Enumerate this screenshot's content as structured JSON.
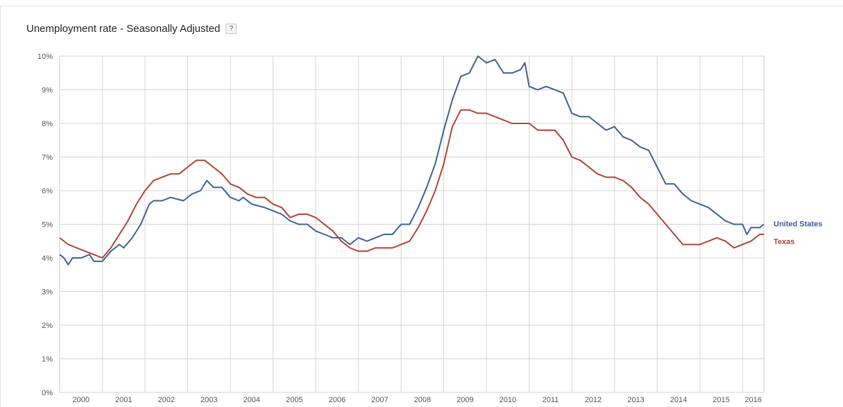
{
  "header": {
    "title": "Unemployment rate - Seasonally Adjusted",
    "help_label": "?"
  },
  "chart_data": {
    "type": "line",
    "title": "Unemployment rate - Seasonally Adjusted",
    "xlabel": "",
    "ylabel": "",
    "x_ticks": [
      "2000",
      "2001",
      "2002",
      "2003",
      "2004",
      "2005",
      "2006",
      "2007",
      "2008",
      "2009",
      "2010",
      "2011",
      "2012",
      "2013",
      "2014",
      "2015",
      "2016"
    ],
    "y_ticks": [
      "0%",
      "1%",
      "2%",
      "3%",
      "4%",
      "5%",
      "6%",
      "7%",
      "8%",
      "9%",
      "10%"
    ],
    "xlim": [
      2000.0,
      2016.5
    ],
    "ylim": [
      0,
      10
    ],
    "grid": true,
    "legend": "right-end",
    "series": [
      {
        "name": "United States",
        "color": "#3b5f9e",
        "points": [
          [
            2000.0,
            4.1
          ],
          [
            2000.1,
            4.0
          ],
          [
            2000.2,
            3.8
          ],
          [
            2000.3,
            4.0
          ],
          [
            2000.5,
            4.0
          ],
          [
            2000.7,
            4.1
          ],
          [
            2000.8,
            3.9
          ],
          [
            2001.0,
            3.9
          ],
          [
            2001.2,
            4.2
          ],
          [
            2001.4,
            4.4
          ],
          [
            2001.5,
            4.3
          ],
          [
            2001.7,
            4.6
          ],
          [
            2001.9,
            5.0
          ],
          [
            2002.1,
            5.6
          ],
          [
            2002.2,
            5.7
          ],
          [
            2002.4,
            5.7
          ],
          [
            2002.6,
            5.8
          ],
          [
            2002.9,
            5.7
          ],
          [
            2003.1,
            5.9
          ],
          [
            2003.3,
            6.0
          ],
          [
            2003.45,
            6.3
          ],
          [
            2003.6,
            6.1
          ],
          [
            2003.8,
            6.1
          ],
          [
            2004.0,
            5.8
          ],
          [
            2004.2,
            5.7
          ],
          [
            2004.3,
            5.8
          ],
          [
            2004.5,
            5.6
          ],
          [
            2004.8,
            5.5
          ],
          [
            2005.0,
            5.4
          ],
          [
            2005.2,
            5.3
          ],
          [
            2005.4,
            5.1
          ],
          [
            2005.6,
            5.0
          ],
          [
            2005.8,
            5.0
          ],
          [
            2006.0,
            4.8
          ],
          [
            2006.2,
            4.7
          ],
          [
            2006.4,
            4.6
          ],
          [
            2006.6,
            4.6
          ],
          [
            2006.8,
            4.4
          ],
          [
            2007.0,
            4.6
          ],
          [
            2007.2,
            4.5
          ],
          [
            2007.4,
            4.6
          ],
          [
            2007.6,
            4.7
          ],
          [
            2007.8,
            4.7
          ],
          [
            2008.0,
            5.0
          ],
          [
            2008.2,
            5.0
          ],
          [
            2008.4,
            5.5
          ],
          [
            2008.6,
            6.1
          ],
          [
            2008.8,
            6.8
          ],
          [
            2009.0,
            7.8
          ],
          [
            2009.2,
            8.7
          ],
          [
            2009.4,
            9.4
          ],
          [
            2009.6,
            9.5
          ],
          [
            2009.8,
            10.0
          ],
          [
            2010.0,
            9.8
          ],
          [
            2010.2,
            9.9
          ],
          [
            2010.4,
            9.5
          ],
          [
            2010.6,
            9.5
          ],
          [
            2010.8,
            9.6
          ],
          [
            2010.9,
            9.8
          ],
          [
            2011.0,
            9.1
          ],
          [
            2011.2,
            9.0
          ],
          [
            2011.4,
            9.1
          ],
          [
            2011.6,
            9.0
          ],
          [
            2011.8,
            8.9
          ],
          [
            2012.0,
            8.3
          ],
          [
            2012.2,
            8.2
          ],
          [
            2012.4,
            8.2
          ],
          [
            2012.6,
            8.0
          ],
          [
            2012.8,
            7.8
          ],
          [
            2013.0,
            7.9
          ],
          [
            2013.2,
            7.6
          ],
          [
            2013.4,
            7.5
          ],
          [
            2013.6,
            7.3
          ],
          [
            2013.8,
            7.2
          ],
          [
            2014.0,
            6.7
          ],
          [
            2014.2,
            6.2
          ],
          [
            2014.4,
            6.2
          ],
          [
            2014.6,
            5.9
          ],
          [
            2014.8,
            5.7
          ],
          [
            2015.0,
            5.6
          ],
          [
            2015.2,
            5.5
          ],
          [
            2015.4,
            5.3
          ],
          [
            2015.6,
            5.1
          ],
          [
            2015.8,
            5.0
          ],
          [
            2016.0,
            5.0
          ],
          [
            2016.1,
            4.7
          ],
          [
            2016.2,
            4.9
          ],
          [
            2016.4,
            4.9
          ],
          [
            2016.5,
            5.0
          ]
        ]
      },
      {
        "name": "Texas",
        "color": "#b0432f",
        "points": [
          [
            2000.0,
            4.6
          ],
          [
            2000.2,
            4.4
          ],
          [
            2000.4,
            4.3
          ],
          [
            2000.6,
            4.2
          ],
          [
            2000.8,
            4.1
          ],
          [
            2001.0,
            4.0
          ],
          [
            2001.2,
            4.3
          ],
          [
            2001.4,
            4.7
          ],
          [
            2001.6,
            5.1
          ],
          [
            2001.8,
            5.6
          ],
          [
            2002.0,
            6.0
          ],
          [
            2002.2,
            6.3
          ],
          [
            2002.4,
            6.4
          ],
          [
            2002.6,
            6.5
          ],
          [
            2002.8,
            6.5
          ],
          [
            2003.0,
            6.7
          ],
          [
            2003.2,
            6.9
          ],
          [
            2003.4,
            6.9
          ],
          [
            2003.6,
            6.7
          ],
          [
            2003.8,
            6.5
          ],
          [
            2004.0,
            6.2
          ],
          [
            2004.2,
            6.1
          ],
          [
            2004.4,
            5.9
          ],
          [
            2004.6,
            5.8
          ],
          [
            2004.8,
            5.8
          ],
          [
            2005.0,
            5.6
          ],
          [
            2005.2,
            5.5
          ],
          [
            2005.4,
            5.2
          ],
          [
            2005.6,
            5.3
          ],
          [
            2005.8,
            5.3
          ],
          [
            2006.0,
            5.2
          ],
          [
            2006.2,
            5.0
          ],
          [
            2006.4,
            4.8
          ],
          [
            2006.6,
            4.5
          ],
          [
            2006.8,
            4.3
          ],
          [
            2007.0,
            4.2
          ],
          [
            2007.2,
            4.2
          ],
          [
            2007.4,
            4.3
          ],
          [
            2007.6,
            4.3
          ],
          [
            2007.8,
            4.3
          ],
          [
            2008.0,
            4.4
          ],
          [
            2008.2,
            4.5
          ],
          [
            2008.4,
            4.9
          ],
          [
            2008.6,
            5.4
          ],
          [
            2008.8,
            6.0
          ],
          [
            2009.0,
            6.8
          ],
          [
            2009.2,
            7.9
          ],
          [
            2009.4,
            8.4
          ],
          [
            2009.6,
            8.4
          ],
          [
            2009.8,
            8.3
          ],
          [
            2010.0,
            8.3
          ],
          [
            2010.2,
            8.2
          ],
          [
            2010.4,
            8.1
          ],
          [
            2010.6,
            8.0
          ],
          [
            2010.8,
            8.0
          ],
          [
            2011.0,
            8.0
          ],
          [
            2011.2,
            7.8
          ],
          [
            2011.4,
            7.8
          ],
          [
            2011.6,
            7.8
          ],
          [
            2011.8,
            7.5
          ],
          [
            2012.0,
            7.0
          ],
          [
            2012.2,
            6.9
          ],
          [
            2012.4,
            6.7
          ],
          [
            2012.6,
            6.5
          ],
          [
            2012.8,
            6.4
          ],
          [
            2013.0,
            6.4
          ],
          [
            2013.2,
            6.3
          ],
          [
            2013.4,
            6.1
          ],
          [
            2013.6,
            5.8
          ],
          [
            2013.8,
            5.6
          ],
          [
            2014.0,
            5.3
          ],
          [
            2014.2,
            5.0
          ],
          [
            2014.4,
            4.7
          ],
          [
            2014.6,
            4.4
          ],
          [
            2014.8,
            4.4
          ],
          [
            2015.0,
            4.4
          ],
          [
            2015.2,
            4.5
          ],
          [
            2015.4,
            4.6
          ],
          [
            2015.6,
            4.5
          ],
          [
            2015.8,
            4.3
          ],
          [
            2016.0,
            4.4
          ],
          [
            2016.2,
            4.5
          ],
          [
            2016.4,
            4.7
          ],
          [
            2016.5,
            4.7
          ]
        ]
      }
    ]
  }
}
